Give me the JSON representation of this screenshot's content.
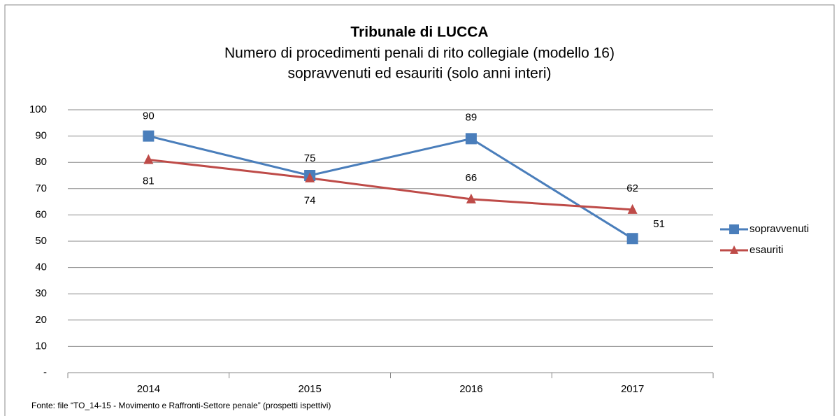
{
  "chart_data": {
    "type": "line",
    "title": "Tribunale di LUCCA",
    "subtitle": [
      "Numero di procedimenti penali di rito collegiale (modello 16)",
      "sopravvenuti ed esauriti (solo anni interi)"
    ],
    "categories": [
      "2014",
      "2015",
      "2016",
      "2017"
    ],
    "series": [
      {
        "name": "sopravvenuti",
        "color": "#4a7ebb",
        "marker": "square",
        "values": [
          90,
          75,
          89,
          51
        ]
      },
      {
        "name": "esauriti",
        "color": "#be4b48",
        "marker": "triangle",
        "values": [
          81,
          74,
          66,
          62
        ]
      }
    ],
    "ylim": [
      0,
      100
    ],
    "yticks": [
      {
        "value": 0,
        "label": "-"
      },
      10,
      20,
      30,
      40,
      50,
      60,
      70,
      80,
      90,
      100
    ],
    "grid": true,
    "legend": "right",
    "source": "Fonte: file “TO_14-15 - Movimento e Raffronti-Settore penale” (prospetti ispettivi)"
  }
}
